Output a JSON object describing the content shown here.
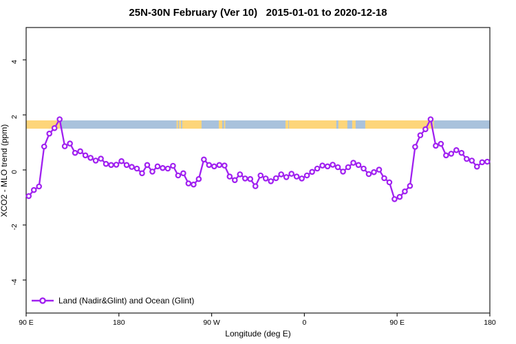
{
  "title": "25N-30N February (Ver 10)   2015-01-01 to 2020-12-18",
  "legend": {
    "label": "Land (Nadir&Glint) and Ocean (Glint)",
    "position": "bottom-left"
  },
  "colors": {
    "series": "#a020f0",
    "marker_fill": "#ffffff",
    "land_band": "#fdd57a",
    "ocean_band": "#a9c2dc",
    "axis": "#1a1a1a",
    "background": "#ffffff"
  },
  "map_band": {
    "description": "land/ocean strip drawn across the plot",
    "y_min_ppm": 1.5,
    "y_max_ppm": 1.8,
    "ocean_extent": [
      90,
      540
    ],
    "land_segments": [
      [
        90,
        122.7
      ],
      [
        236,
        237.3
      ],
      [
        238.4,
        240.3
      ],
      [
        241.5,
        260.2
      ],
      [
        277,
        280.3
      ],
      [
        282,
        283.2
      ],
      [
        341.7,
        344.4
      ],
      [
        345,
        391
      ],
      [
        393,
        401.7
      ],
      [
        406.4,
        409.7
      ],
      [
        419.1,
        484
      ],
      [
        484.8,
        485.8
      ]
    ]
  },
  "chart_data": {
    "type": "line",
    "title": "25N-30N February (Ver 10)   2015-01-01 to 2020-12-18",
    "xlabel": "Longitude (deg E)",
    "ylabel": "XCO2 - MLO trend (ppm)",
    "xlim": [
      90,
      540
    ],
    "ylim": [
      -5.2,
      5.2
    ],
    "grid": false,
    "legend_position": "bottom-left",
    "x_ticks": [
      {
        "pos": 90,
        "label": "90 E"
      },
      {
        "pos": 180,
        "label": "180"
      },
      {
        "pos": 270,
        "label": "90 W"
      },
      {
        "pos": 360,
        "label": "0"
      },
      {
        "pos": 450,
        "label": "90 E"
      },
      {
        "pos": 540,
        "label": "180"
      }
    ],
    "y_ticks": [
      {
        "pos": -4,
        "label": "-4"
      },
      {
        "pos": -2,
        "label": "-2"
      },
      {
        "pos": 0,
        "label": "0"
      },
      {
        "pos": 2,
        "label": "2"
      },
      {
        "pos": 4,
        "label": "4"
      }
    ],
    "x": [
      92.5,
      97.5,
      102.5,
      107.5,
      112.5,
      117.5,
      122.5,
      127.5,
      132.5,
      137.5,
      142.5,
      147.5,
      152.5,
      157.5,
      162.5,
      167.5,
      172.5,
      177.5,
      182.5,
      187.5,
      192.5,
      197.5,
      202.5,
      207.5,
      212.5,
      217.5,
      222.5,
      227.5,
      232.5,
      237.5,
      242.5,
      247.5,
      252.5,
      257.5,
      262.5,
      267.5,
      272.5,
      277.5,
      282.5,
      287.5,
      292.5,
      297.5,
      302.5,
      307.5,
      312.5,
      317.5,
      322.5,
      327.5,
      332.5,
      337.5,
      342.5,
      347.5,
      352.5,
      357.5,
      362.5,
      367.5,
      372.5,
      377.5,
      382.5,
      387.5,
      392.5,
      397.5,
      402.5,
      407.5,
      412.5,
      417.5,
      422.5,
      427.5,
      432.5,
      437.5,
      442.5,
      447.5,
      452.5,
      457.5,
      462.5,
      467.5,
      472.5,
      477.5,
      482.5,
      487.5,
      492.5,
      497.5,
      502.5,
      507.5,
      512.5,
      517.5,
      522.5,
      527.5,
      532.5,
      537.5
    ],
    "series": [
      {
        "name": "Land (Nadir&Glint) and Ocean (Glint)",
        "values": [
          -0.95,
          -0.73,
          -0.6,
          0.85,
          1.32,
          1.52,
          1.84,
          0.86,
          0.96,
          0.62,
          0.68,
          0.53,
          0.44,
          0.34,
          0.41,
          0.22,
          0.18,
          0.19,
          0.32,
          0.18,
          0.11,
          0.05,
          -0.12,
          0.18,
          -0.06,
          0.13,
          0.07,
          0.05,
          0.15,
          -0.2,
          -0.12,
          -0.49,
          -0.53,
          -0.33,
          0.38,
          0.18,
          0.13,
          0.18,
          0.16,
          -0.24,
          -0.37,
          -0.16,
          -0.31,
          -0.33,
          -0.59,
          -0.2,
          -0.31,
          -0.41,
          -0.3,
          -0.16,
          -0.26,
          -0.14,
          -0.24,
          -0.31,
          -0.2,
          -0.07,
          0.05,
          0.16,
          0.13,
          0.19,
          0.1,
          -0.06,
          0.1,
          0.26,
          0.18,
          0.05,
          -0.15,
          -0.08,
          0.01,
          -0.3,
          -0.45,
          -1.06,
          -0.98,
          -0.78,
          -0.58,
          0.84,
          1.26,
          1.48,
          1.84,
          0.88,
          0.95,
          0.53,
          0.59,
          0.72,
          0.62,
          0.4,
          0.34,
          0.12,
          0.28,
          0.3
        ]
      }
    ]
  }
}
